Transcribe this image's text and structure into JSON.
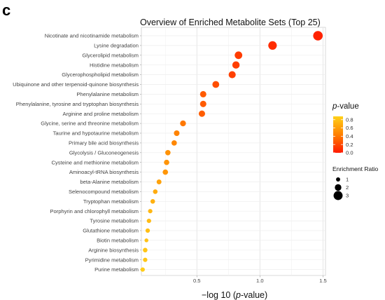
{
  "panel_label": "c",
  "colors": {
    "low_p": "#ff1a00",
    "high_p": "#ffd11a",
    "grid": "#ebebeb",
    "border": "#cfcfcf"
  },
  "chart_data": {
    "type": "scatter",
    "title": "Overview of Enriched Metabolite Sets (Top 25)",
    "xlabel_prefix": "−log 10 (",
    "xlabel_italic": "p",
    "xlabel_suffix": "-value)",
    "xlim": [
      0.06,
      1.52
    ],
    "xticks": [
      0.5,
      1.0,
      1.5
    ],
    "xtick_labels": [
      "0.5",
      "1.0",
      "1.5"
    ],
    "grid": true,
    "categories": [
      "Nicotinate and nicotinamide metabolism",
      "Lysine degradation",
      "Glycerolipid metabolism",
      "Histidine metabolism",
      "Glycerophospholipid metabolism",
      "Ubiquinone and other terpenoid-quinone biosynthesis",
      "Phenylalanine metabolism",
      "Phenylalanine, tyrosine and tryptophan biosynthesis",
      "Arginine and proline metabolism",
      "Glycine, serine and threonine metabolism",
      "Taurine and hypotaurine metabolism",
      "Primary bile acid biosynthesis",
      "Glycolysis / Gluconeogenesis",
      "Cysteine and methionine metabolism",
      "Aminoacyl-tRNA biosynthesis",
      "beta-Alanine metabolism",
      "Selenocompound metabolism",
      "Tryptophan metabolism",
      "Porphyrin and chlorophyll metabolism",
      "Tyrosine metabolism",
      "Glutathione metabolism",
      "Biotin metabolism",
      "Arginine biosynthesis",
      "Pyrimidine metabolism",
      "Purine metabolism"
    ],
    "x": [
      1.46,
      1.1,
      0.83,
      0.81,
      0.78,
      0.65,
      0.55,
      0.55,
      0.54,
      0.39,
      0.34,
      0.32,
      0.27,
      0.26,
      0.25,
      0.2,
      0.17,
      0.15,
      0.13,
      0.12,
      0.11,
      0.1,
      0.09,
      0.09,
      0.07
    ],
    "p_value": [
      0.035,
      0.079,
      0.148,
      0.155,
      0.166,
      0.224,
      0.282,
      0.282,
      0.288,
      0.407,
      0.457,
      0.479,
      0.537,
      0.55,
      0.562,
      0.631,
      0.676,
      0.708,
      0.741,
      0.759,
      0.776,
      0.794,
      0.813,
      0.813,
      0.851
    ],
    "enrichment_ratio": [
      3.2,
      2.8,
      2.4,
      2.3,
      2.2,
      2.1,
      1.9,
      1.9,
      1.9,
      1.7,
      1.6,
      1.5,
      1.5,
      1.5,
      1.5,
      1.3,
      1.2,
      1.2,
      1.1,
      1.1,
      1.1,
      0.9,
      1.2,
      1.1,
      1.1
    ],
    "legend": {
      "color_title_italic": "p",
      "color_title_suffix": "-value",
      "color_ticks": [
        "0.8",
        "0.6",
        "0.4",
        "0.2",
        "0.0"
      ],
      "color_tick_values": [
        0.8,
        0.6,
        0.4,
        0.2,
        0.0
      ],
      "color_range": [
        0.0,
        0.88
      ],
      "size_title": "Enrichment Ratio",
      "size_labels": [
        "1",
        "2",
        "3"
      ],
      "size_values": [
        1,
        2,
        3
      ],
      "placement": "right"
    }
  }
}
